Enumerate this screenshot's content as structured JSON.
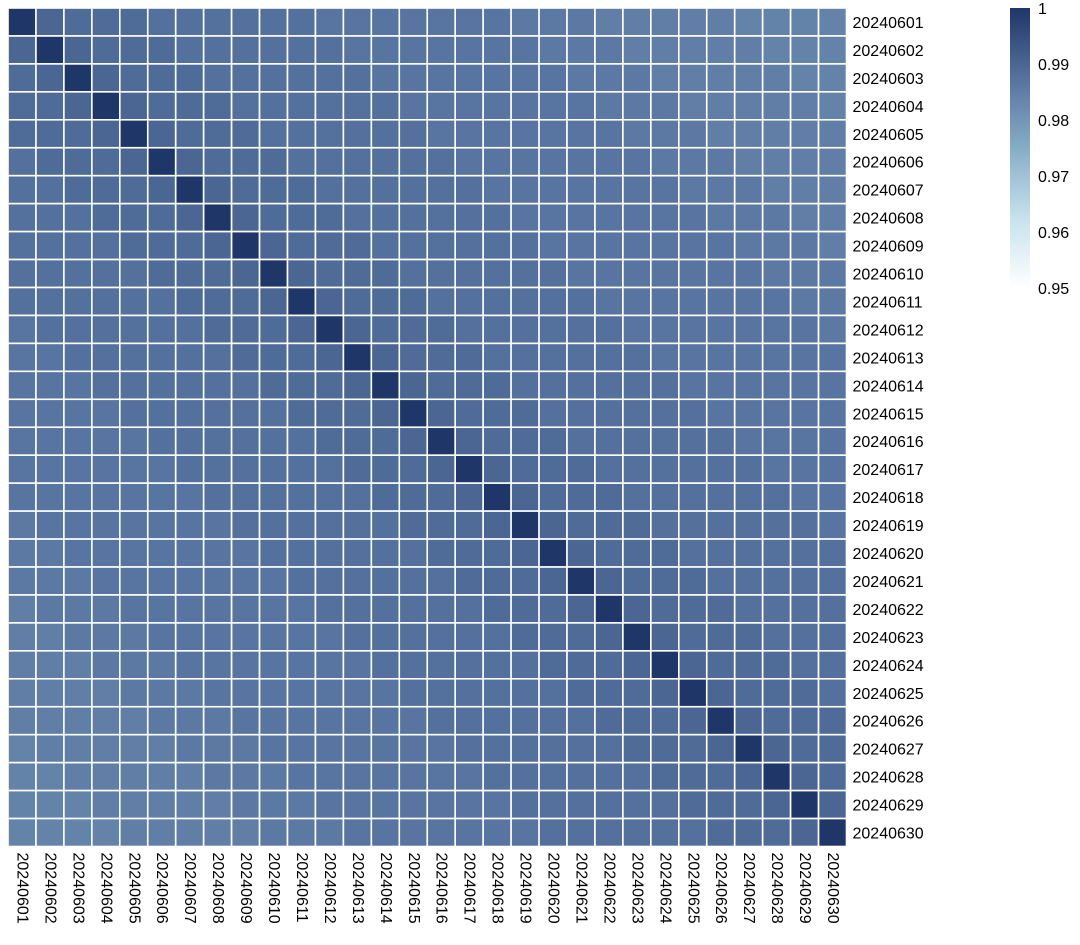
{
  "chart_data": {
    "type": "heatmap",
    "title": "",
    "xlabel": "",
    "ylabel": "",
    "rows": [
      "20240601",
      "20240602",
      "20240603",
      "20240604",
      "20240605",
      "20240606",
      "20240607",
      "20240608",
      "20240609",
      "20240610",
      "20240611",
      "20240612",
      "20240613",
      "20240614",
      "20240615",
      "20240616",
      "20240617",
      "20240618",
      "20240619",
      "20240620",
      "20240621",
      "20240622",
      "20240623",
      "20240624",
      "20240625",
      "20240626",
      "20240627",
      "20240628",
      "20240629",
      "20240630"
    ],
    "columns": [
      "20240601",
      "20240602",
      "20240603",
      "20240604",
      "20240605",
      "20240606",
      "20240607",
      "20240608",
      "20240609",
      "20240610",
      "20240611",
      "20240612",
      "20240613",
      "20240614",
      "20240615",
      "20240616",
      "20240617",
      "20240618",
      "20240619",
      "20240620",
      "20240621",
      "20240622",
      "20240623",
      "20240624",
      "20240625",
      "20240626",
      "20240627",
      "20240628",
      "20240629",
      "20240630"
    ],
    "values": [
      [
        1.0,
        0.99,
        0.989,
        0.989,
        0.989,
        0.988,
        0.988,
        0.988,
        0.988,
        0.988,
        0.988,
        0.987,
        0.987,
        0.987,
        0.987,
        0.987,
        0.987,
        0.987,
        0.986,
        0.986,
        0.986,
        0.985,
        0.985,
        0.985,
        0.985,
        0.985,
        0.984,
        0.984,
        0.984,
        0.984
      ],
      [
        0.99,
        1.0,
        0.99,
        0.989,
        0.989,
        0.989,
        0.988,
        0.988,
        0.988,
        0.988,
        0.988,
        0.988,
        0.987,
        0.987,
        0.987,
        0.987,
        0.987,
        0.987,
        0.987,
        0.986,
        0.986,
        0.986,
        0.985,
        0.985,
        0.985,
        0.985,
        0.985,
        0.984,
        0.984,
        0.984
      ],
      [
        0.989,
        0.99,
        1.0,
        0.99,
        0.989,
        0.989,
        0.989,
        0.988,
        0.988,
        0.988,
        0.988,
        0.988,
        0.988,
        0.987,
        0.987,
        0.987,
        0.987,
        0.987,
        0.987,
        0.987,
        0.986,
        0.986,
        0.986,
        0.985,
        0.985,
        0.985,
        0.985,
        0.985,
        0.984,
        0.984
      ],
      [
        0.989,
        0.989,
        0.99,
        1.0,
        0.99,
        0.989,
        0.989,
        0.989,
        0.988,
        0.988,
        0.988,
        0.988,
        0.988,
        0.988,
        0.987,
        0.987,
        0.987,
        0.987,
        0.987,
        0.987,
        0.987,
        0.986,
        0.986,
        0.986,
        0.985,
        0.985,
        0.985,
        0.985,
        0.985,
        0.984
      ],
      [
        0.989,
        0.989,
        0.989,
        0.99,
        1.0,
        0.99,
        0.989,
        0.989,
        0.989,
        0.988,
        0.988,
        0.988,
        0.988,
        0.988,
        0.988,
        0.987,
        0.987,
        0.987,
        0.987,
        0.987,
        0.987,
        0.987,
        0.986,
        0.986,
        0.986,
        0.985,
        0.985,
        0.985,
        0.985,
        0.985
      ],
      [
        0.988,
        0.989,
        0.989,
        0.989,
        0.99,
        1.0,
        0.99,
        0.989,
        0.989,
        0.989,
        0.988,
        0.988,
        0.988,
        0.988,
        0.988,
        0.988,
        0.987,
        0.987,
        0.987,
        0.987,
        0.987,
        0.987,
        0.987,
        0.986,
        0.986,
        0.986,
        0.985,
        0.985,
        0.985,
        0.985
      ],
      [
        0.988,
        0.988,
        0.989,
        0.989,
        0.989,
        0.99,
        1.0,
        0.99,
        0.989,
        0.989,
        0.989,
        0.988,
        0.988,
        0.988,
        0.988,
        0.988,
        0.988,
        0.987,
        0.987,
        0.987,
        0.987,
        0.987,
        0.987,
        0.987,
        0.986,
        0.986,
        0.986,
        0.985,
        0.985,
        0.985
      ],
      [
        0.988,
        0.988,
        0.988,
        0.989,
        0.989,
        0.989,
        0.99,
        1.0,
        0.99,
        0.989,
        0.989,
        0.989,
        0.988,
        0.988,
        0.988,
        0.988,
        0.988,
        0.988,
        0.987,
        0.987,
        0.987,
        0.987,
        0.987,
        0.987,
        0.987,
        0.986,
        0.986,
        0.986,
        0.985,
        0.985
      ],
      [
        0.988,
        0.988,
        0.988,
        0.988,
        0.989,
        0.989,
        0.989,
        0.99,
        1.0,
        0.99,
        0.989,
        0.989,
        0.989,
        0.988,
        0.988,
        0.988,
        0.988,
        0.988,
        0.988,
        0.987,
        0.987,
        0.987,
        0.987,
        0.987,
        0.987,
        0.987,
        0.986,
        0.986,
        0.986,
        0.985
      ],
      [
        0.988,
        0.988,
        0.988,
        0.988,
        0.988,
        0.989,
        0.989,
        0.989,
        0.99,
        1.0,
        0.99,
        0.989,
        0.989,
        0.989,
        0.988,
        0.988,
        0.988,
        0.988,
        0.988,
        0.988,
        0.987,
        0.987,
        0.987,
        0.987,
        0.987,
        0.987,
        0.987,
        0.986,
        0.986,
        0.986
      ],
      [
        0.988,
        0.988,
        0.988,
        0.988,
        0.988,
        0.988,
        0.989,
        0.989,
        0.989,
        0.99,
        1.0,
        0.99,
        0.989,
        0.989,
        0.989,
        0.988,
        0.988,
        0.988,
        0.988,
        0.988,
        0.988,
        0.987,
        0.987,
        0.987,
        0.987,
        0.987,
        0.987,
        0.987,
        0.986,
        0.986
      ],
      [
        0.987,
        0.988,
        0.988,
        0.988,
        0.988,
        0.988,
        0.988,
        0.989,
        0.989,
        0.989,
        0.99,
        1.0,
        0.99,
        0.989,
        0.989,
        0.989,
        0.988,
        0.988,
        0.988,
        0.988,
        0.988,
        0.988,
        0.987,
        0.987,
        0.987,
        0.987,
        0.987,
        0.987,
        0.987,
        0.986
      ],
      [
        0.987,
        0.987,
        0.988,
        0.988,
        0.988,
        0.988,
        0.988,
        0.988,
        0.989,
        0.989,
        0.989,
        0.99,
        1.0,
        0.99,
        0.989,
        0.989,
        0.989,
        0.988,
        0.988,
        0.988,
        0.988,
        0.988,
        0.988,
        0.987,
        0.987,
        0.987,
        0.987,
        0.987,
        0.987,
        0.987
      ],
      [
        0.987,
        0.987,
        0.987,
        0.988,
        0.988,
        0.988,
        0.988,
        0.988,
        0.988,
        0.989,
        0.989,
        0.989,
        0.99,
        1.0,
        0.99,
        0.989,
        0.989,
        0.989,
        0.988,
        0.988,
        0.988,
        0.988,
        0.988,
        0.988,
        0.987,
        0.987,
        0.987,
        0.987,
        0.987,
        0.987
      ],
      [
        0.987,
        0.987,
        0.987,
        0.987,
        0.988,
        0.988,
        0.988,
        0.988,
        0.988,
        0.988,
        0.989,
        0.989,
        0.989,
        0.99,
        1.0,
        0.99,
        0.989,
        0.989,
        0.989,
        0.988,
        0.988,
        0.988,
        0.988,
        0.988,
        0.988,
        0.987,
        0.987,
        0.987,
        0.987,
        0.987
      ],
      [
        0.987,
        0.987,
        0.987,
        0.987,
        0.987,
        0.988,
        0.988,
        0.988,
        0.988,
        0.988,
        0.988,
        0.989,
        0.989,
        0.989,
        0.99,
        1.0,
        0.99,
        0.989,
        0.989,
        0.989,
        0.988,
        0.988,
        0.988,
        0.988,
        0.988,
        0.988,
        0.987,
        0.987,
        0.987,
        0.987
      ],
      [
        0.987,
        0.987,
        0.987,
        0.987,
        0.987,
        0.987,
        0.988,
        0.988,
        0.988,
        0.988,
        0.988,
        0.988,
        0.989,
        0.989,
        0.989,
        0.99,
        1.0,
        0.99,
        0.989,
        0.989,
        0.989,
        0.988,
        0.988,
        0.988,
        0.988,
        0.988,
        0.988,
        0.987,
        0.987,
        0.987
      ],
      [
        0.987,
        0.987,
        0.987,
        0.987,
        0.987,
        0.987,
        0.987,
        0.988,
        0.988,
        0.988,
        0.988,
        0.988,
        0.988,
        0.989,
        0.989,
        0.989,
        0.99,
        1.0,
        0.99,
        0.989,
        0.989,
        0.989,
        0.988,
        0.988,
        0.988,
        0.988,
        0.988,
        0.988,
        0.987,
        0.987
      ],
      [
        0.986,
        0.987,
        0.987,
        0.987,
        0.987,
        0.987,
        0.987,
        0.987,
        0.988,
        0.988,
        0.988,
        0.988,
        0.988,
        0.988,
        0.989,
        0.989,
        0.989,
        0.99,
        1.0,
        0.99,
        0.989,
        0.989,
        0.989,
        0.988,
        0.988,
        0.988,
        0.988,
        0.988,
        0.988,
        0.987
      ],
      [
        0.986,
        0.986,
        0.987,
        0.987,
        0.987,
        0.987,
        0.987,
        0.987,
        0.987,
        0.988,
        0.988,
        0.988,
        0.988,
        0.988,
        0.988,
        0.989,
        0.989,
        0.989,
        0.99,
        1.0,
        0.99,
        0.989,
        0.989,
        0.989,
        0.988,
        0.988,
        0.988,
        0.988,
        0.988,
        0.988
      ],
      [
        0.986,
        0.986,
        0.986,
        0.987,
        0.987,
        0.987,
        0.987,
        0.987,
        0.987,
        0.987,
        0.988,
        0.988,
        0.988,
        0.988,
        0.988,
        0.988,
        0.989,
        0.989,
        0.989,
        0.99,
        1.0,
        0.99,
        0.989,
        0.989,
        0.989,
        0.988,
        0.988,
        0.988,
        0.988,
        0.988
      ],
      [
        0.985,
        0.986,
        0.986,
        0.986,
        0.987,
        0.987,
        0.987,
        0.987,
        0.987,
        0.987,
        0.987,
        0.988,
        0.988,
        0.988,
        0.988,
        0.988,
        0.988,
        0.989,
        0.989,
        0.989,
        0.99,
        1.0,
        0.99,
        0.989,
        0.989,
        0.989,
        0.988,
        0.988,
        0.988,
        0.988
      ],
      [
        0.985,
        0.985,
        0.986,
        0.986,
        0.986,
        0.987,
        0.987,
        0.987,
        0.987,
        0.987,
        0.987,
        0.987,
        0.988,
        0.988,
        0.988,
        0.988,
        0.988,
        0.988,
        0.989,
        0.989,
        0.989,
        0.99,
        1.0,
        0.99,
        0.989,
        0.989,
        0.989,
        0.988,
        0.988,
        0.988
      ],
      [
        0.985,
        0.985,
        0.985,
        0.986,
        0.986,
        0.986,
        0.987,
        0.987,
        0.987,
        0.987,
        0.987,
        0.987,
        0.987,
        0.988,
        0.988,
        0.988,
        0.988,
        0.988,
        0.988,
        0.989,
        0.989,
        0.989,
        0.99,
        1.0,
        0.99,
        0.989,
        0.989,
        0.989,
        0.988,
        0.988
      ],
      [
        0.985,
        0.985,
        0.985,
        0.985,
        0.986,
        0.986,
        0.986,
        0.987,
        0.987,
        0.987,
        0.987,
        0.987,
        0.987,
        0.987,
        0.988,
        0.988,
        0.988,
        0.988,
        0.988,
        0.988,
        0.989,
        0.989,
        0.989,
        0.99,
        1.0,
        0.99,
        0.989,
        0.989,
        0.989,
        0.988
      ],
      [
        0.985,
        0.985,
        0.985,
        0.985,
        0.985,
        0.986,
        0.986,
        0.986,
        0.987,
        0.987,
        0.987,
        0.987,
        0.987,
        0.987,
        0.987,
        0.988,
        0.988,
        0.988,
        0.988,
        0.988,
        0.988,
        0.989,
        0.989,
        0.989,
        0.99,
        1.0,
        0.99,
        0.989,
        0.989,
        0.989
      ],
      [
        0.984,
        0.985,
        0.985,
        0.985,
        0.985,
        0.985,
        0.986,
        0.986,
        0.986,
        0.987,
        0.987,
        0.987,
        0.987,
        0.987,
        0.987,
        0.987,
        0.988,
        0.988,
        0.988,
        0.988,
        0.988,
        0.988,
        0.989,
        0.989,
        0.989,
        0.99,
        1.0,
        0.99,
        0.989,
        0.989
      ],
      [
        0.984,
        0.984,
        0.985,
        0.985,
        0.985,
        0.985,
        0.985,
        0.986,
        0.986,
        0.986,
        0.987,
        0.987,
        0.987,
        0.987,
        0.987,
        0.987,
        0.987,
        0.988,
        0.988,
        0.988,
        0.988,
        0.988,
        0.988,
        0.989,
        0.989,
        0.989,
        0.99,
        1.0,
        0.99,
        0.989
      ],
      [
        0.984,
        0.984,
        0.984,
        0.985,
        0.985,
        0.985,
        0.985,
        0.985,
        0.986,
        0.986,
        0.986,
        0.987,
        0.987,
        0.987,
        0.987,
        0.987,
        0.987,
        0.987,
        0.988,
        0.988,
        0.988,
        0.988,
        0.988,
        0.988,
        0.989,
        0.989,
        0.989,
        0.99,
        1.0,
        0.99
      ],
      [
        0.984,
        0.984,
        0.984,
        0.984,
        0.985,
        0.985,
        0.985,
        0.985,
        0.985,
        0.986,
        0.986,
        0.986,
        0.987,
        0.987,
        0.987,
        0.987,
        0.987,
        0.987,
        0.987,
        0.988,
        0.988,
        0.988,
        0.988,
        0.988,
        0.988,
        0.989,
        0.989,
        0.989,
        0.99,
        1.0
      ]
    ],
    "color_scale": {
      "min": 0.95,
      "max": 1,
      "stops": [
        "#ffffff",
        "#c6e2ec",
        "#86adc6",
        "#56729e",
        "#1f3668"
      ],
      "ticks": [
        {
          "value": 1,
          "label": "1"
        },
        {
          "value": 0.99,
          "label": "0.99"
        },
        {
          "value": 0.98,
          "label": "0.98"
        },
        {
          "value": 0.97,
          "label": "0.97"
        },
        {
          "value": 0.96,
          "label": "0.96"
        },
        {
          "value": 0.95,
          "label": "0.95"
        }
      ]
    },
    "grid": true,
    "legend_position": "right"
  }
}
